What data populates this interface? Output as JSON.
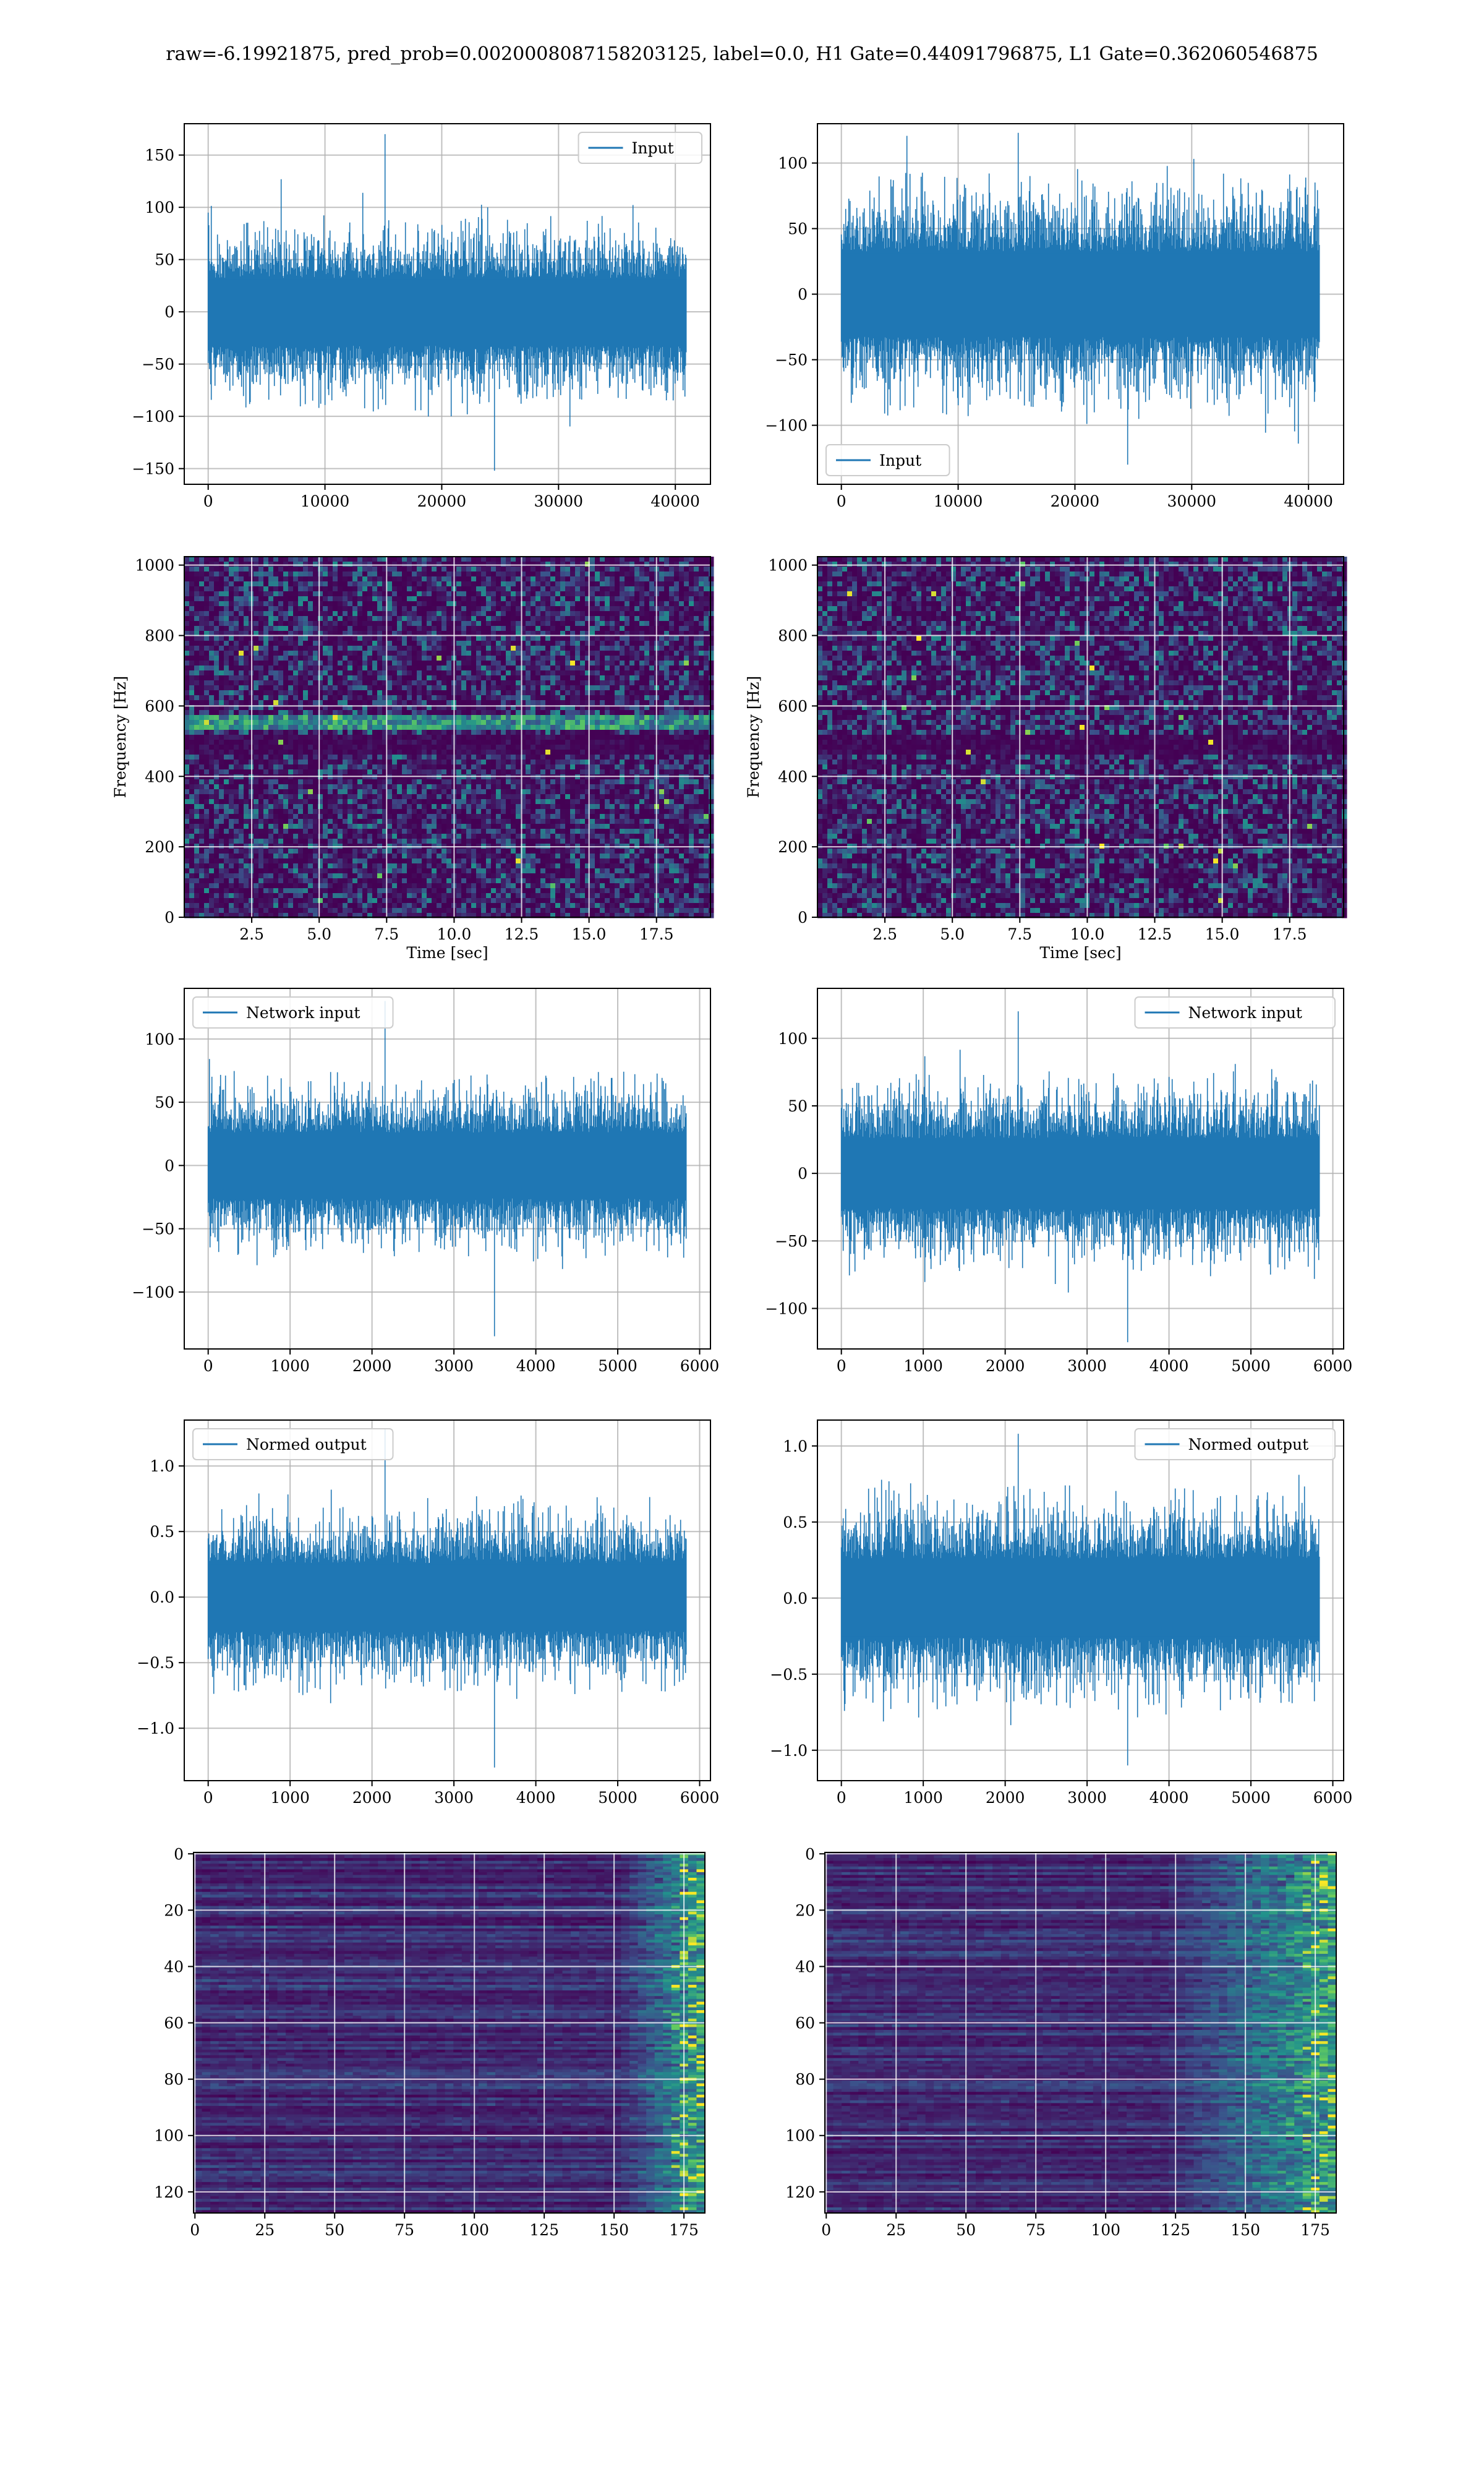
{
  "figure": {
    "suptitle": "raw=-6.19921875, pred_prob=0.0020008087158203125, label=0.0, H1 Gate=0.44091796875, L1 Gate=0.362060546875"
  },
  "colors": {
    "line": "#1f77b4",
    "grid": "#b0b0b0",
    "viridis_low": "#440154",
    "viridis_mid": "#21918c",
    "viridis_high": "#fde725"
  },
  "chart_data": [
    {
      "type": "line",
      "panel": "row1-left",
      "series": [
        {
          "name": "Input",
          "n_points": 40960
        }
      ],
      "xlim": [
        -2048,
        43008
      ],
      "ylim": [
        -165,
        180
      ],
      "xticks": [
        0,
        10000,
        20000,
        30000,
        40000
      ],
      "xtick_labels": [
        "0",
        "10000",
        "20000",
        "30000",
        "40000"
      ],
      "yticks": [
        -150,
        -100,
        -50,
        0,
        50,
        100,
        150
      ],
      "ytick_labels": [
        "−150",
        "−100",
        "−50",
        "0",
        "50",
        "100",
        "150"
      ],
      "legend": "upper right",
      "grid": true,
      "amplitude_std": 25,
      "peak_max": 170,
      "peak_min": -152
    },
    {
      "type": "line",
      "panel": "row1-right",
      "series": [
        {
          "name": "Input",
          "n_points": 40960
        }
      ],
      "xlim": [
        -2048,
        43008
      ],
      "ylim": [
        -145,
        130
      ],
      "xticks": [
        0,
        10000,
        20000,
        30000,
        40000
      ],
      "xtick_labels": [
        "0",
        "10000",
        "20000",
        "30000",
        "40000"
      ],
      "yticks": [
        -100,
        -50,
        0,
        50,
        100
      ],
      "ytick_labels": [
        "−100",
        "−50",
        "0",
        "50",
        "100"
      ],
      "legend": "lower left",
      "grid": true,
      "amplitude_std": 25,
      "peak_max": 123,
      "peak_min": -130
    },
    {
      "type": "heatmap",
      "panel": "row2-left",
      "xlabel": "Time [sec]",
      "ylabel": "Frequency [Hz]",
      "xlim": [
        0,
        19.5
      ],
      "ylim": [
        0,
        1024
      ],
      "xticks": [
        2.5,
        5.0,
        7.5,
        10.0,
        12.5,
        15.0,
        17.5
      ],
      "xtick_labels": [
        "2.5",
        "5.0",
        "7.5",
        "10.0",
        "12.5",
        "15.0",
        "17.5"
      ],
      "yticks": [
        0,
        200,
        400,
        600,
        800,
        1000
      ],
      "ytick_labels": [
        "0",
        "200",
        "400",
        "600",
        "800",
        "1000"
      ],
      "colormap": "viridis",
      "bright_band_hz": 560,
      "dark_band_hz": 500,
      "grid": true
    },
    {
      "type": "heatmap",
      "panel": "row2-right",
      "xlabel": "Time [sec]",
      "ylabel": "Frequency [Hz]",
      "xlim": [
        0,
        19.5
      ],
      "ylim": [
        0,
        1024
      ],
      "xticks": [
        2.5,
        5.0,
        7.5,
        10.0,
        12.5,
        15.0,
        17.5
      ],
      "xtick_labels": [
        "2.5",
        "5.0",
        "7.5",
        "10.0",
        "12.5",
        "15.0",
        "17.5"
      ],
      "yticks": [
        0,
        200,
        400,
        600,
        800,
        1000
      ],
      "ytick_labels": [
        "0",
        "200",
        "400",
        "600",
        "800",
        "1000"
      ],
      "colormap": "viridis",
      "dark_band_hz": 500,
      "grid": true
    },
    {
      "type": "line",
      "panel": "row3-left",
      "series": [
        {
          "name": "Network input",
          "n_points": 5840
        }
      ],
      "xlim": [
        -292,
        6132
      ],
      "ylim": [
        -145,
        140
      ],
      "xticks": [
        0,
        1000,
        2000,
        3000,
        4000,
        5000,
        6000
      ],
      "xtick_labels": [
        "0",
        "1000",
        "2000",
        "3000",
        "4000",
        "5000",
        "6000"
      ],
      "yticks": [
        -100,
        -50,
        0,
        50,
        100
      ],
      "ytick_labels": [
        "−100",
        "−50",
        "0",
        "50",
        "100"
      ],
      "legend": "upper left",
      "grid": true,
      "amplitude_std": 20,
      "peak_max": 130,
      "peak_min": -135
    },
    {
      "type": "line",
      "panel": "row3-right",
      "series": [
        {
          "name": "Network input",
          "n_points": 5840
        }
      ],
      "xlim": [
        -292,
        6132
      ],
      "ylim": [
        -130,
        137
      ],
      "xticks": [
        0,
        1000,
        2000,
        3000,
        4000,
        5000,
        6000
      ],
      "xtick_labels": [
        "0",
        "1000",
        "2000",
        "3000",
        "4000",
        "5000",
        "6000"
      ],
      "yticks": [
        -100,
        -50,
        0,
        50,
        100
      ],
      "ytick_labels": [
        "−100",
        "−50",
        "0",
        "50",
        "100"
      ],
      "legend": "upper right",
      "grid": true,
      "amplitude_std": 20,
      "peak_max": 120,
      "peak_min": -125
    },
    {
      "type": "line",
      "panel": "row4-left",
      "series": [
        {
          "name": "Normed output",
          "n_points": 5840
        }
      ],
      "xlim": [
        -292,
        6132
      ],
      "ylim": [
        -1.4,
        1.35
      ],
      "xticks": [
        0,
        1000,
        2000,
        3000,
        4000,
        5000,
        6000
      ],
      "xtick_labels": [
        "0",
        "1000",
        "2000",
        "3000",
        "4000",
        "5000",
        "6000"
      ],
      "yticks": [
        -1.0,
        -0.5,
        0.0,
        0.5,
        1.0
      ],
      "ytick_labels": [
        "−1.0",
        "−0.5",
        "0.0",
        "0.5",
        "1.0"
      ],
      "legend": "upper left",
      "grid": true,
      "amplitude_std": 0.2,
      "peak_max": 1.28,
      "peak_min": -1.3
    },
    {
      "type": "line",
      "panel": "row4-right",
      "series": [
        {
          "name": "Normed output",
          "n_points": 5840
        }
      ],
      "xlim": [
        -292,
        6132
      ],
      "ylim": [
        -1.2,
        1.17
      ],
      "xticks": [
        0,
        1000,
        2000,
        3000,
        4000,
        5000,
        6000
      ],
      "xtick_labels": [
        "0",
        "1000",
        "2000",
        "3000",
        "4000",
        "5000",
        "6000"
      ],
      "yticks": [
        -1.0,
        -0.5,
        0.0,
        0.5,
        1.0
      ],
      "ytick_labels": [
        "−1.0",
        "−0.5",
        "0.0",
        "0.5",
        "1.0"
      ],
      "legend": "upper right",
      "grid": true,
      "amplitude_std": 0.2,
      "peak_max": 1.08,
      "peak_min": -1.1
    },
    {
      "type": "heatmap",
      "panel": "row5-left",
      "xlim": [
        -0.5,
        182.5
      ],
      "ylim": [
        127.5,
        -0.5
      ],
      "xticks": [
        0,
        25,
        50,
        75,
        100,
        125,
        150,
        175
      ],
      "xtick_labels": [
        "0",
        "25",
        "50",
        "75",
        "100",
        "125",
        "150",
        "175"
      ],
      "yticks": [
        0,
        20,
        40,
        60,
        80,
        100,
        120
      ],
      "ytick_labels": [
        "0",
        "20",
        "40",
        "60",
        "80",
        "100",
        "120"
      ],
      "colormap": "viridis",
      "rows": 128,
      "cols": 183,
      "bright_region": "right edge",
      "grid": true
    },
    {
      "type": "heatmap",
      "panel": "row5-right",
      "xlim": [
        -0.5,
        182.5
      ],
      "ylim": [
        127.5,
        -0.5
      ],
      "xticks": [
        0,
        25,
        50,
        75,
        100,
        125,
        150,
        175
      ],
      "xtick_labels": [
        "0",
        "25",
        "50",
        "75",
        "100",
        "125",
        "150",
        "175"
      ],
      "yticks": [
        0,
        20,
        40,
        60,
        80,
        100,
        120
      ],
      "ytick_labels": [
        "0",
        "20",
        "40",
        "60",
        "80",
        "100",
        "120"
      ],
      "colormap": "viridis",
      "rows": 128,
      "cols": 183,
      "bright_region": "right third",
      "grid": true
    }
  ]
}
